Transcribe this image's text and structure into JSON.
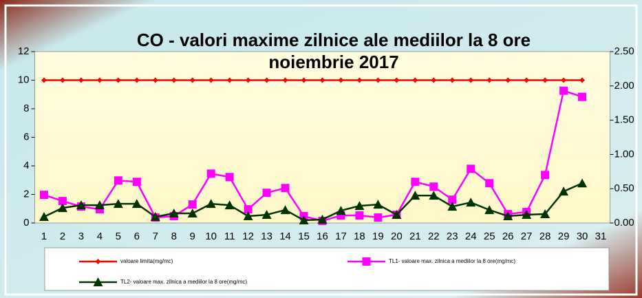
{
  "chart_data": {
    "type": "line",
    "title": "CO - valori maxime zilnice ale mediilor la 8 ore",
    "subtitle": "noiembrie  2017",
    "categories": [
      "1",
      "2",
      "3",
      "4",
      "5",
      "6",
      "7",
      "8",
      "9",
      "10",
      "11",
      "12",
      "13",
      "14",
      "15",
      "16",
      "17",
      "18",
      "19",
      "20",
      "21",
      "22",
      "23",
      "24",
      "25",
      "26",
      "27",
      "28",
      "29",
      "30",
      "31"
    ],
    "series": [
      {
        "name": "valoare limita(mg/mc)",
        "color": "#ff0000",
        "marker": "diamond",
        "values": [
          10,
          10,
          10,
          10,
          10,
          10,
          10,
          10,
          10,
          10,
          10,
          10,
          10,
          10,
          10,
          10,
          10,
          10,
          10,
          10,
          10,
          10,
          10,
          10,
          10,
          10,
          10,
          10,
          10,
          10,
          null
        ]
      },
      {
        "name": "TL1- valoare max. zilnica a mediilor la 8 ore(mg/mc)",
        "color": "#ff00ff",
        "marker": "square",
        "axis": "y2",
        "values": [
          0.41,
          0.32,
          0.24,
          0.2,
          0.62,
          0.6,
          0.08,
          0.1,
          0.27,
          0.72,
          0.67,
          0.2,
          0.44,
          0.51,
          0.1,
          0.03,
          0.11,
          0.11,
          0.08,
          0.12,
          0.6,
          0.53,
          0.34,
          0.79,
          0.58,
          0.13,
          0.16,
          0.7,
          1.93,
          1.84,
          null
        ]
      },
      {
        "name": "TL2- valoare max. zilnica a mediilor la 8 ore(mg/mc)",
        "color": "#003300",
        "marker": "triangle",
        "axis": "y2",
        "values": [
          0.09,
          0.22,
          0.26,
          0.26,
          0.28,
          0.28,
          0.09,
          0.14,
          0.14,
          0.28,
          0.26,
          0.1,
          0.12,
          0.19,
          0.04,
          0.05,
          0.18,
          0.25,
          0.27,
          0.12,
          0.4,
          0.4,
          0.24,
          0.3,
          0.19,
          0.1,
          0.12,
          0.13,
          0.46,
          0.58,
          null
        ]
      }
    ],
    "ylim": [
      0,
      12
    ],
    "yticks": [
      0,
      2,
      4,
      6,
      8,
      10,
      12
    ],
    "y2lim": [
      0,
      2.5
    ],
    "y2ticks": [
      {
        "value": 0,
        "label": "0.00"
      },
      {
        "value": 0.5,
        "label": "0.50"
      },
      {
        "value": 1,
        "label": "1.00"
      },
      {
        "value": 1.5,
        "label": "1.50"
      },
      {
        "value": 2,
        "label": "2.00"
      },
      {
        "value": 2.5,
        "label": "2.50"
      }
    ]
  }
}
